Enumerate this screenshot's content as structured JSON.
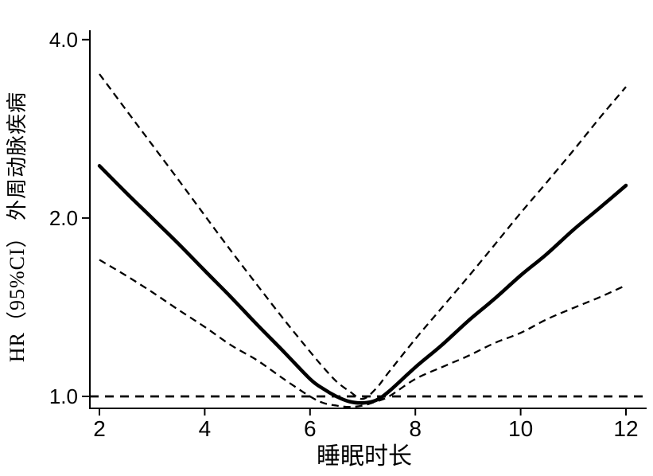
{
  "figure": {
    "background": "#ffffff",
    "ink": "#000000"
  },
  "chart_data": {
    "type": "line",
    "title": "",
    "xlabel": "睡眠时长",
    "ylabel": "HR（95%CI） 外周动脉疾病",
    "y_scale": "log2",
    "xlim": [
      1.82,
      12.47
    ],
    "ylim": [
      0.955,
      4.15
    ],
    "grid": false,
    "legend": "none",
    "reference_line_y": 1.0,
    "x_axis": {
      "tick_values": [
        2,
        4,
        6,
        8,
        10,
        12
      ],
      "tick_labels": [
        "2",
        "4",
        "6",
        "8",
        "10",
        "12"
      ]
    },
    "y_axis": {
      "tick_values": [
        4.0,
        2.0,
        1.0
      ],
      "tick_labels": [
        "4.0",
        "2.0",
        "1.0"
      ]
    },
    "x": [
      2,
      2.5,
      3,
      3.5,
      4,
      4.5,
      5,
      5.5,
      6,
      6.25,
      6.5,
      6.75,
      7,
      7.25,
      7.5,
      8,
      8.5,
      9,
      9.5,
      10,
      10.5,
      11,
      11.5,
      12
    ],
    "series": [
      {
        "name": "hr_estimate",
        "style": "solid",
        "values": [
          2.45,
          2.21,
          2.0,
          1.81,
          1.63,
          1.47,
          1.32,
          1.19,
          1.07,
          1.03,
          1.0,
          0.98,
          0.975,
          0.985,
          1.02,
          1.12,
          1.22,
          1.34,
          1.46,
          1.6,
          1.74,
          1.91,
          2.08,
          2.27
        ]
      },
      {
        "name": "ci_upper",
        "style": "dashed",
        "values": [
          3.5,
          3.05,
          2.66,
          2.32,
          2.02,
          1.76,
          1.54,
          1.35,
          1.19,
          1.12,
          1.06,
          1.02,
          0.99,
          1.03,
          1.1,
          1.25,
          1.41,
          1.59,
          1.8,
          2.04,
          2.3,
          2.6,
          2.95,
          3.33
        ]
      },
      {
        "name": "ci_lower",
        "style": "dashed",
        "values": [
          1.7,
          1.6,
          1.5,
          1.4,
          1.31,
          1.22,
          1.15,
          1.07,
          1.0,
          0.975,
          0.965,
          0.96,
          0.965,
          0.98,
          1.0,
          1.07,
          1.12,
          1.17,
          1.23,
          1.28,
          1.35,
          1.41,
          1.47,
          1.54
        ]
      }
    ]
  }
}
